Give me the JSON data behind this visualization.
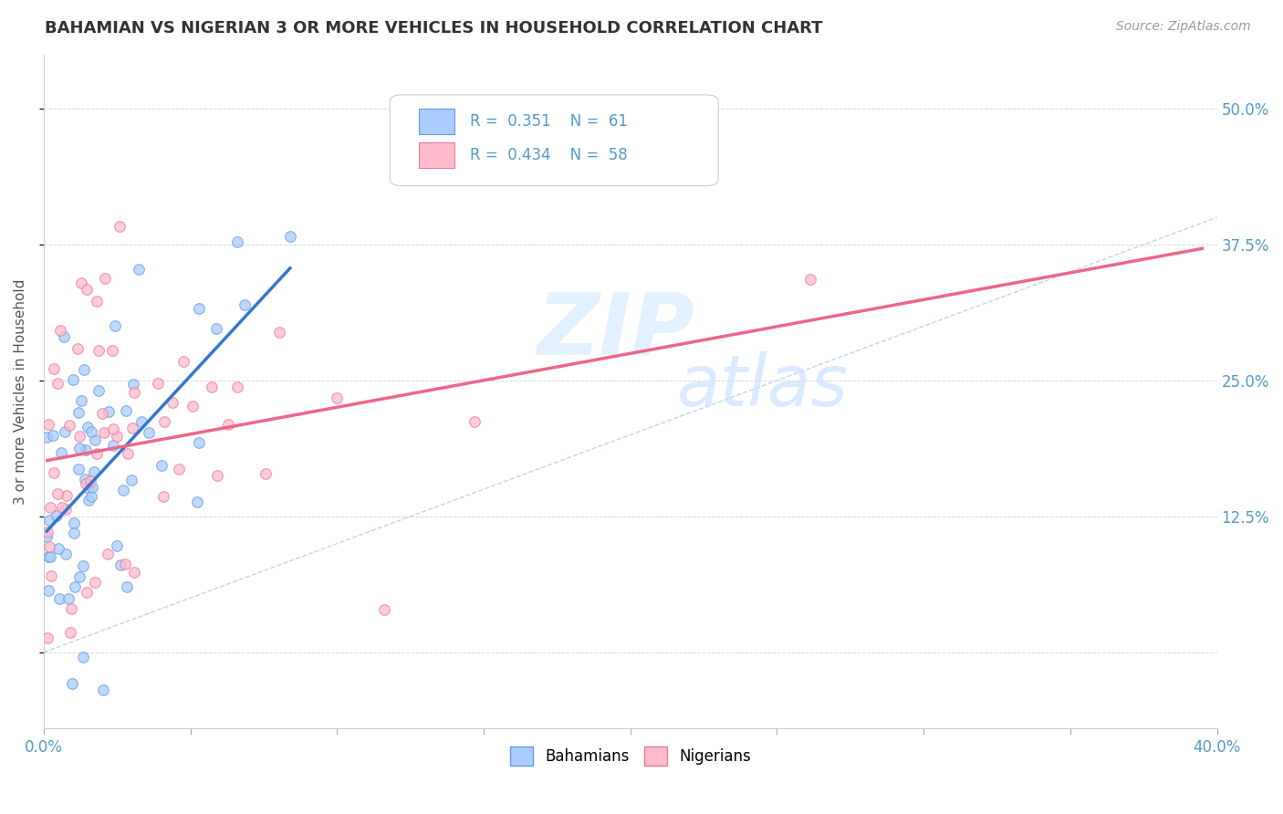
{
  "title": "BAHAMIAN VS NIGERIAN 3 OR MORE VEHICLES IN HOUSEHOLD CORRELATION CHART",
  "source_text": "Source: ZipAtlas.com",
  "ylabel": "3 or more Vehicles in Household",
  "xlim": [
    0.0,
    0.4
  ],
  "ylim": [
    -0.07,
    0.55
  ],
  "bahamian_color": "#aaccff",
  "bahamian_edge": "#6699dd",
  "nigerian_color": "#ffbbcc",
  "nigerian_edge": "#ee7799",
  "trend_bahamian_color": "#3377cc",
  "trend_nigerian_color": "#ee6688",
  "diagonal_color": "#bbccee",
  "legend_R_bahamian": "0.351",
  "legend_N_bahamian": "61",
  "legend_R_nigerian": "0.434",
  "legend_N_nigerian": "58",
  "grid_color": "#cccccc",
  "tick_label_color": "#5599cc",
  "title_color": "#333333",
  "source_color": "#999999"
}
